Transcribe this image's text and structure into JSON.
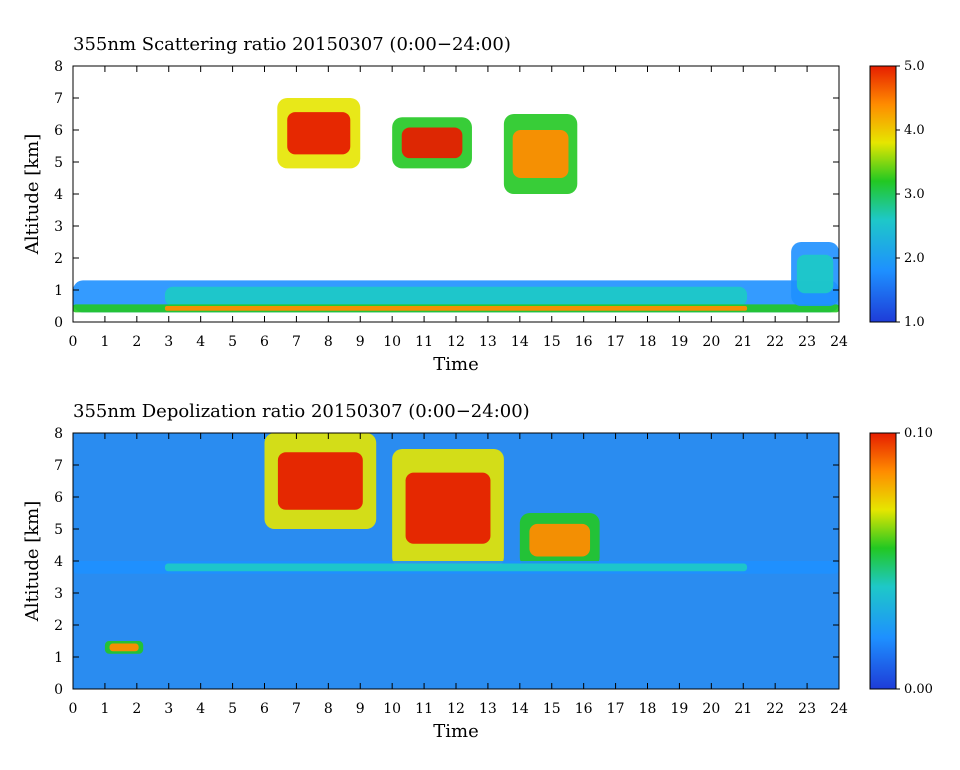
{
  "chart_data": [
    {
      "type": "heatmap",
      "title": "355nm Scattering ratio  20150307 (0:00−24:00)",
      "xlabel": "Time",
      "ylabel": "Altitude [km]",
      "x_ticks": [
        "0",
        "1",
        "2",
        "3",
        "4",
        "5",
        "6",
        "7",
        "8",
        "9",
        "10",
        "11",
        "12",
        "13",
        "14",
        "15",
        "16",
        "17",
        "18",
        "19",
        "20",
        "21",
        "22",
        "23",
        "24"
      ],
      "y_ticks": [
        "0",
        "1",
        "2",
        "3",
        "4",
        "5",
        "6",
        "7",
        "8"
      ],
      "xlim": [
        0,
        24
      ],
      "ylim": [
        0,
        8
      ],
      "colorbar": {
        "range": [
          1.0,
          5.0
        ],
        "tick_labels": [
          "5.0",
          "4.0",
          "3.0",
          "2.0",
          "1.0"
        ]
      },
      "features": [
        {
          "t0": 0.0,
          "t1": 24.0,
          "z0": 0.3,
          "z1": 1.3,
          "level": 0.35
        },
        {
          "t0": 0.0,
          "t1": 24.0,
          "z0": 0.3,
          "z1": 0.55,
          "level": 0.65
        },
        {
          "t0": 6.4,
          "t1": 9.0,
          "z0": 4.8,
          "z1": 7.0,
          "level": 0.85
        },
        {
          "t0": 10.0,
          "t1": 12.5,
          "z0": 4.8,
          "z1": 6.4,
          "level": 0.8
        },
        {
          "t0": 13.5,
          "t1": 15.8,
          "z0": 4.0,
          "z1": 6.5,
          "level": 0.75
        },
        {
          "t0": 22.5,
          "t1": 24.0,
          "z0": 0.5,
          "z1": 2.5,
          "level": 0.25
        }
      ]
    },
    {
      "type": "heatmap",
      "title": "355nm Depolization ratio  20150307 (0:00−24:00)",
      "xlabel": "Time",
      "ylabel": "Altitude [km]",
      "x_ticks": [
        "0",
        "1",
        "2",
        "3",
        "4",
        "5",
        "6",
        "7",
        "8",
        "9",
        "10",
        "11",
        "12",
        "13",
        "14",
        "15",
        "16",
        "17",
        "18",
        "19",
        "20",
        "21",
        "22",
        "23",
        "24"
      ],
      "y_ticks": [
        "0",
        "1",
        "2",
        "3",
        "4",
        "5",
        "6",
        "7",
        "8"
      ],
      "xlim": [
        0,
        24
      ],
      "ylim": [
        0,
        8
      ],
      "colorbar": {
        "range": [
          0.0,
          0.1
        ],
        "tick_labels": [
          "0.10",
          "0.00"
        ]
      },
      "features": [
        {
          "t0": 6.0,
          "t1": 9.5,
          "z0": 5.0,
          "z1": 8.0,
          "level": 0.85
        },
        {
          "t0": 10.0,
          "t1": 13.5,
          "z0": 3.8,
          "z1": 7.5,
          "level": 0.85
        },
        {
          "t0": 14.0,
          "t1": 16.5,
          "z0": 3.8,
          "z1": 5.5,
          "level": 0.75
        },
        {
          "t0": 1.0,
          "t1": 2.2,
          "z0": 1.1,
          "z1": 1.5,
          "level": 0.7
        },
        {
          "t0": 0.0,
          "t1": 24.0,
          "z0": 3.6,
          "z1": 4.0,
          "level": 0.35
        }
      ]
    }
  ]
}
